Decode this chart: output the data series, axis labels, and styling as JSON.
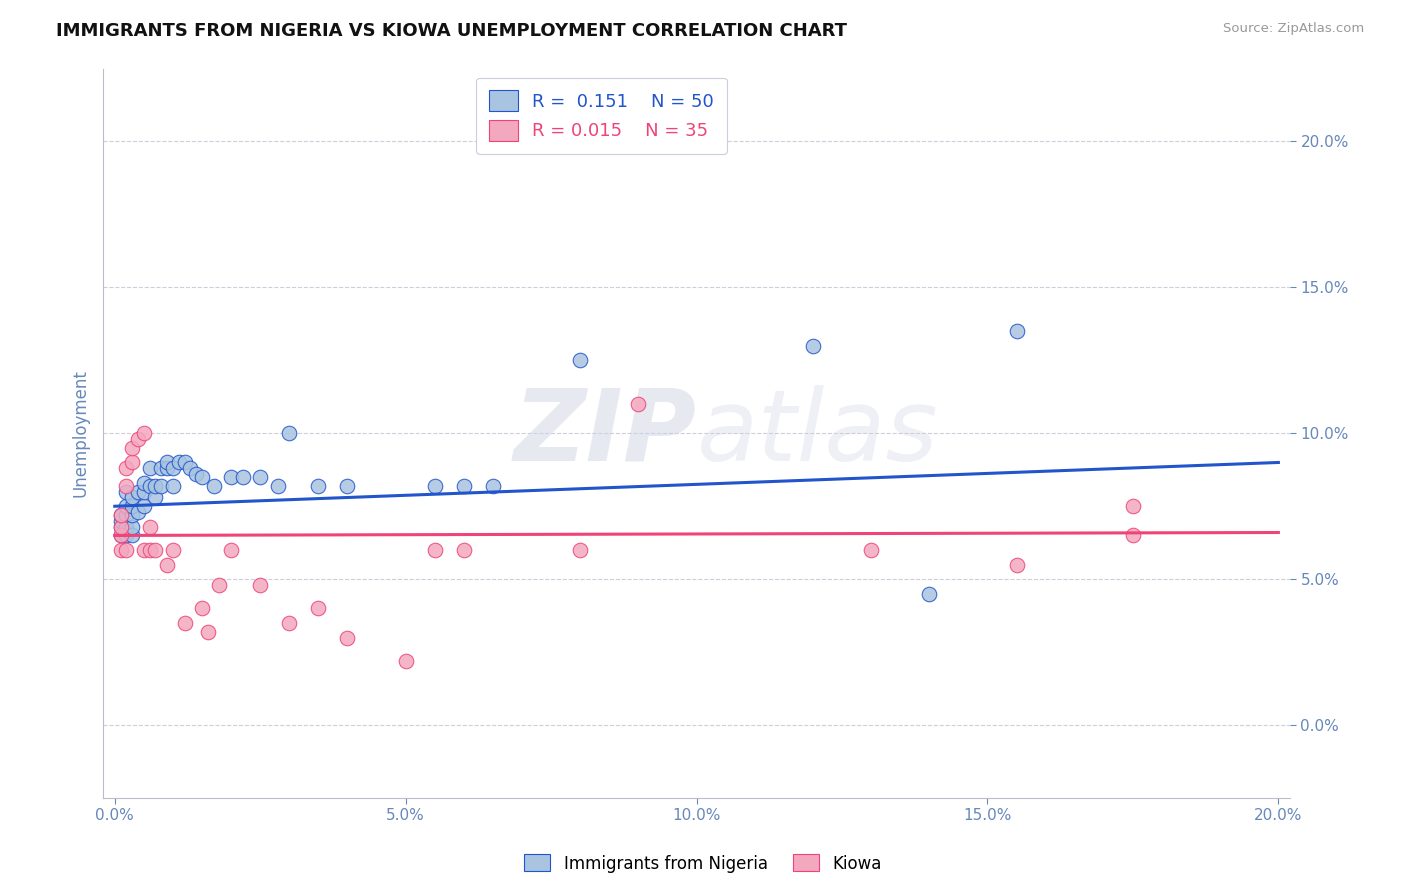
{
  "title": "IMMIGRANTS FROM NIGERIA VS KIOWA UNEMPLOYMENT CORRELATION CHART",
  "source": "Source: ZipAtlas.com",
  "ylabel_label": "Unemployment",
  "blue_R": "0.151",
  "blue_N": "50",
  "pink_R": "0.015",
  "pink_N": "35",
  "blue_color": "#A8C4E0",
  "pink_color": "#F4A8C0",
  "blue_line_color": "#2255CC",
  "pink_line_color": "#EE4477",
  "grid_color": "#C8C8D8",
  "bg_color": "#FFFFFF",
  "title_color": "#111111",
  "axis_tick_color": "#6688BB",
  "watermark_color": "#E0E4F0",
  "legend_box_color": "#FFFFFF",
  "legend_border_color": "#CCCCDD",
  "blue_scatter_x": [
    0.001,
    0.001,
    0.001,
    0.001,
    0.002,
    0.002,
    0.002,
    0.002,
    0.002,
    0.002,
    0.003,
    0.003,
    0.003,
    0.003,
    0.003,
    0.004,
    0.004,
    0.005,
    0.005,
    0.005,
    0.006,
    0.006,
    0.007,
    0.007,
    0.008,
    0.008,
    0.009,
    0.009,
    0.01,
    0.01,
    0.011,
    0.012,
    0.013,
    0.014,
    0.015,
    0.017,
    0.02,
    0.022,
    0.025,
    0.028,
    0.03,
    0.035,
    0.04,
    0.055,
    0.06,
    0.065,
    0.08,
    0.12,
    0.14,
    0.155
  ],
  "blue_scatter_y": [
    0.065,
    0.068,
    0.07,
    0.072,
    0.065,
    0.067,
    0.068,
    0.072,
    0.075,
    0.08,
    0.065,
    0.068,
    0.072,
    0.075,
    0.078,
    0.073,
    0.08,
    0.075,
    0.08,
    0.083,
    0.082,
    0.088,
    0.078,
    0.082,
    0.082,
    0.088,
    0.088,
    0.09,
    0.082,
    0.088,
    0.09,
    0.09,
    0.088,
    0.086,
    0.085,
    0.082,
    0.085,
    0.085,
    0.085,
    0.082,
    0.1,
    0.082,
    0.082,
    0.082,
    0.082,
    0.082,
    0.125,
    0.13,
    0.045,
    0.135
  ],
  "pink_scatter_x": [
    0.001,
    0.001,
    0.001,
    0.001,
    0.002,
    0.002,
    0.002,
    0.003,
    0.003,
    0.004,
    0.005,
    0.005,
    0.006,
    0.006,
    0.007,
    0.009,
    0.01,
    0.012,
    0.015,
    0.016,
    0.018,
    0.02,
    0.025,
    0.03,
    0.035,
    0.04,
    0.05,
    0.055,
    0.06,
    0.08,
    0.09,
    0.13,
    0.155,
    0.175,
    0.175
  ],
  "pink_scatter_y": [
    0.06,
    0.065,
    0.068,
    0.072,
    0.06,
    0.082,
    0.088,
    0.09,
    0.095,
    0.098,
    0.06,
    0.1,
    0.06,
    0.068,
    0.06,
    0.055,
    0.06,
    0.035,
    0.04,
    0.032,
    0.048,
    0.06,
    0.048,
    0.035,
    0.04,
    0.03,
    0.022,
    0.06,
    0.06,
    0.06,
    0.11,
    0.06,
    0.055,
    0.065,
    0.075
  ],
  "xlim": [
    -0.002,
    0.202
  ],
  "ylim": [
    -0.025,
    0.225
  ],
  "x_ticks": [
    0.0,
    0.05,
    0.1,
    0.15,
    0.2
  ],
  "y_ticks": [
    0.0,
    0.05,
    0.1,
    0.15,
    0.2
  ],
  "figsize": [
    14.06,
    8.92
  ]
}
